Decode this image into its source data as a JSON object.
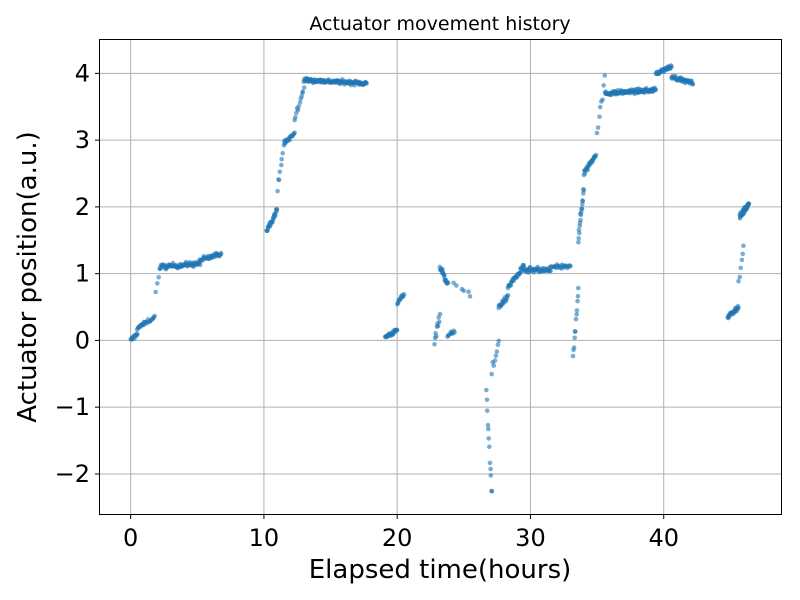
{
  "chart_data": {
    "type": "scatter",
    "title": "Actuator movement history",
    "xlabel": "Elapsed time(hours)",
    "ylabel": "Actuator position(a.u.)",
    "xlim": [
      -2.3,
      48.8
    ],
    "ylim": [
      -2.6,
      4.5
    ],
    "xticks": [
      0,
      10,
      20,
      30,
      40
    ],
    "yticks": [
      -2,
      -1,
      0,
      1,
      2,
      3,
      4
    ],
    "xtick_labels": [
      "0",
      "10",
      "20",
      "30",
      "40"
    ],
    "ytick_labels": [
      "−2",
      "−1",
      "0",
      "1",
      "2",
      "3",
      "4"
    ],
    "grid": true,
    "point_color": "#1f77b4",
    "point_opacity": 0.6,
    "segments": [
      {
        "x": [
          0.0,
          0.5
        ],
        "y": [
          0.0,
          0.1
        ],
        "n": 12,
        "noise": 0.05
      },
      {
        "x": [
          0.5,
          1.0
        ],
        "y": [
          0.18,
          0.25
        ],
        "n": 12,
        "noise": 0.04
      },
      {
        "x": [
          1.0,
          1.8
        ],
        "y": [
          0.25,
          0.35
        ],
        "n": 14,
        "noise": 0.05
      },
      {
        "x": [
          1.9,
          2.2
        ],
        "y": [
          0.75,
          1.05
        ],
        "n": 4,
        "noise": 0.05
      },
      {
        "x": [
          2.2,
          5.2
        ],
        "y": [
          1.1,
          1.15
        ],
        "n": 70,
        "noise": 0.06
      },
      {
        "x": [
          5.2,
          6.8
        ],
        "y": [
          1.2,
          1.3
        ],
        "n": 35,
        "noise": 0.06
      },
      {
        "x": [
          10.2,
          11.0
        ],
        "y": [
          1.65,
          1.95
        ],
        "n": 25,
        "noise": 0.06
      },
      {
        "x": [
          11.0,
          11.5
        ],
        "y": [
          2.3,
          2.9
        ],
        "n": 8,
        "noise": 0.1
      },
      {
        "x": [
          11.5,
          12.3
        ],
        "y": [
          2.95,
          3.1
        ],
        "n": 18,
        "noise": 0.06
      },
      {
        "x": [
          12.3,
          13.0
        ],
        "y": [
          3.3,
          3.8
        ],
        "n": 12,
        "noise": 0.12
      },
      {
        "x": [
          13.0,
          17.7
        ],
        "y": [
          3.9,
          3.85
        ],
        "n": 130,
        "noise": 0.05
      },
      {
        "x": [
          19.1,
          20.0
        ],
        "y": [
          0.05,
          0.15
        ],
        "n": 25,
        "noise": 0.05
      },
      {
        "x": [
          20.0,
          20.5
        ],
        "y": [
          0.55,
          0.7
        ],
        "n": 12,
        "noise": 0.06
      },
      {
        "x": [
          22.8,
          23.2
        ],
        "y": [
          0.0,
          0.4
        ],
        "n": 10,
        "noise": 0.12
      },
      {
        "x": [
          23.2,
          23.8
        ],
        "y": [
          1.1,
          0.85
        ],
        "n": 20,
        "noise": 0.08
      },
      {
        "x": [
          23.8,
          24.3
        ],
        "y": [
          0.05,
          0.15
        ],
        "n": 10,
        "noise": 0.06
      },
      {
        "x": [
          24.3,
          25.5
        ],
        "y": [
          0.85,
          0.65
        ],
        "n": 6,
        "noise": 0.08
      },
      {
        "x": [
          26.7,
          27.1
        ],
        "y": [
          -0.8,
          -2.3
        ],
        "n": 12,
        "noise": 0.15
      },
      {
        "x": [
          27.1,
          27.6
        ],
        "y": [
          -0.5,
          0.0
        ],
        "n": 8,
        "noise": 0.15
      },
      {
        "x": [
          27.6,
          28.3
        ],
        "y": [
          0.5,
          0.65
        ],
        "n": 18,
        "noise": 0.06
      },
      {
        "x": [
          28.3,
          29.5
        ],
        "y": [
          0.8,
          1.1
        ],
        "n": 30,
        "noise": 0.07
      },
      {
        "x": [
          29.5,
          31.5
        ],
        "y": [
          1.05,
          1.05
        ],
        "n": 45,
        "noise": 0.07
      },
      {
        "x": [
          31.5,
          33.0
        ],
        "y": [
          1.1,
          1.1
        ],
        "n": 25,
        "noise": 0.05
      },
      {
        "x": [
          33.2,
          33.6
        ],
        "y": [
          -0.25,
          0.8
        ],
        "n": 12,
        "noise": 0.15
      },
      {
        "x": [
          33.6,
          34.0
        ],
        "y": [
          1.5,
          2.3
        ],
        "n": 18,
        "noise": 0.15
      },
      {
        "x": [
          34.0,
          34.9
        ],
        "y": [
          2.5,
          2.8
        ],
        "n": 25,
        "noise": 0.08
      },
      {
        "x": [
          35.0,
          35.6
        ],
        "y": [
          3.1,
          3.9
        ],
        "n": 8,
        "noise": 0.12
      },
      {
        "x": [
          35.6,
          39.4
        ],
        "y": [
          3.7,
          3.75
        ],
        "n": 110,
        "noise": 0.05
      },
      {
        "x": [
          39.4,
          40.6
        ],
        "y": [
          4.0,
          4.1
        ],
        "n": 30,
        "noise": 0.05
      },
      {
        "x": [
          40.6,
          42.2
        ],
        "y": [
          3.95,
          3.85
        ],
        "n": 40,
        "noise": 0.05
      },
      {
        "x": [
          44.8,
          45.6
        ],
        "y": [
          0.35,
          0.5
        ],
        "n": 25,
        "noise": 0.05
      },
      {
        "x": [
          45.6,
          46.0
        ],
        "y": [
          0.9,
          1.4
        ],
        "n": 6,
        "noise": 0.12
      },
      {
        "x": [
          45.7,
          46.4
        ],
        "y": [
          1.85,
          2.05
        ],
        "n": 35,
        "noise": 0.07
      }
    ]
  }
}
